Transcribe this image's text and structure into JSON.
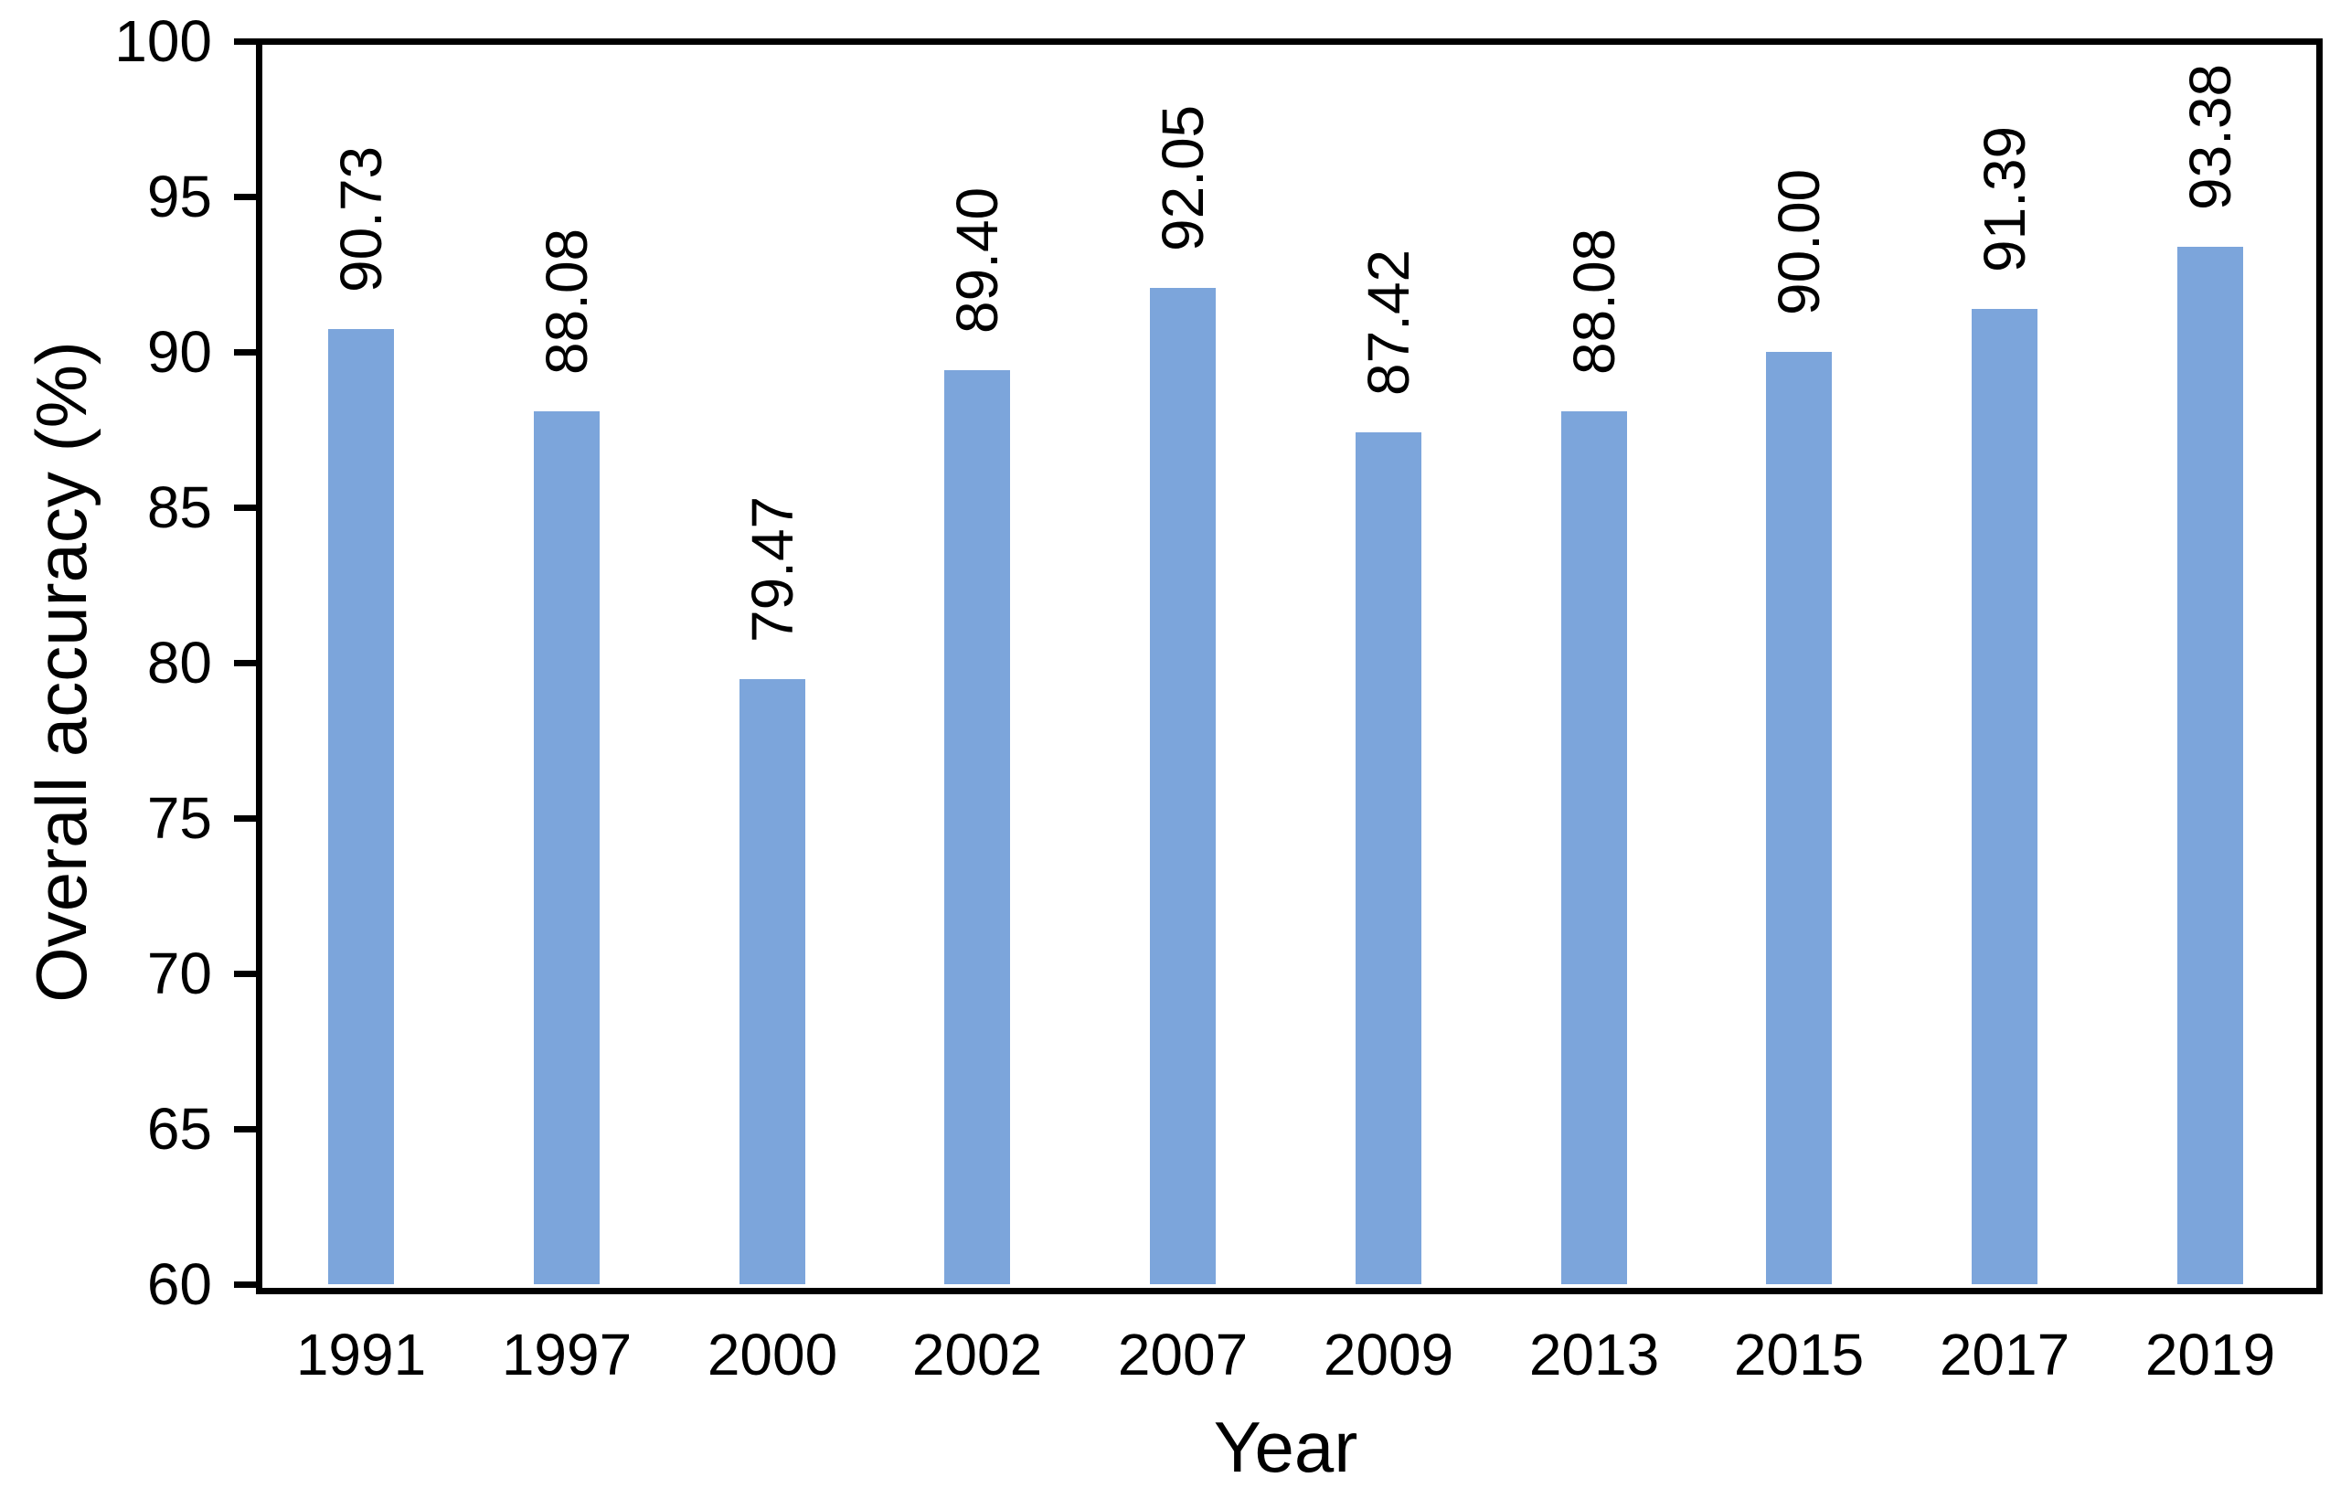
{
  "chart_data": {
    "type": "bar",
    "title": "",
    "xlabel": "Year",
    "ylabel": "Overall accuracy (%)",
    "categories": [
      "1991",
      "1997",
      "2000",
      "2002",
      "2007",
      "2009",
      "2013",
      "2015",
      "2017",
      "2019"
    ],
    "values": [
      90.73,
      88.08,
      79.47,
      89.4,
      92.05,
      87.42,
      88.08,
      90.0,
      91.39,
      93.38
    ],
    "value_labels": [
      "90.73",
      "88.08",
      "79.47",
      "89.40",
      "92.05",
      "87.42",
      "88.08",
      "90.00",
      "91.39",
      "93.38"
    ],
    "ylim": [
      60,
      100
    ],
    "yticks": [
      60,
      65,
      70,
      75,
      80,
      85,
      90,
      95,
      100
    ],
    "ytick_labels": [
      "60",
      "65",
      "70",
      "75",
      "80",
      "85",
      "90",
      "95",
      "100"
    ],
    "grid": "off",
    "legend": "none",
    "bar_color": "#7CA5DB",
    "axis_color": "#000000",
    "text_color": "#000000",
    "background_color": "#ffffff"
  }
}
